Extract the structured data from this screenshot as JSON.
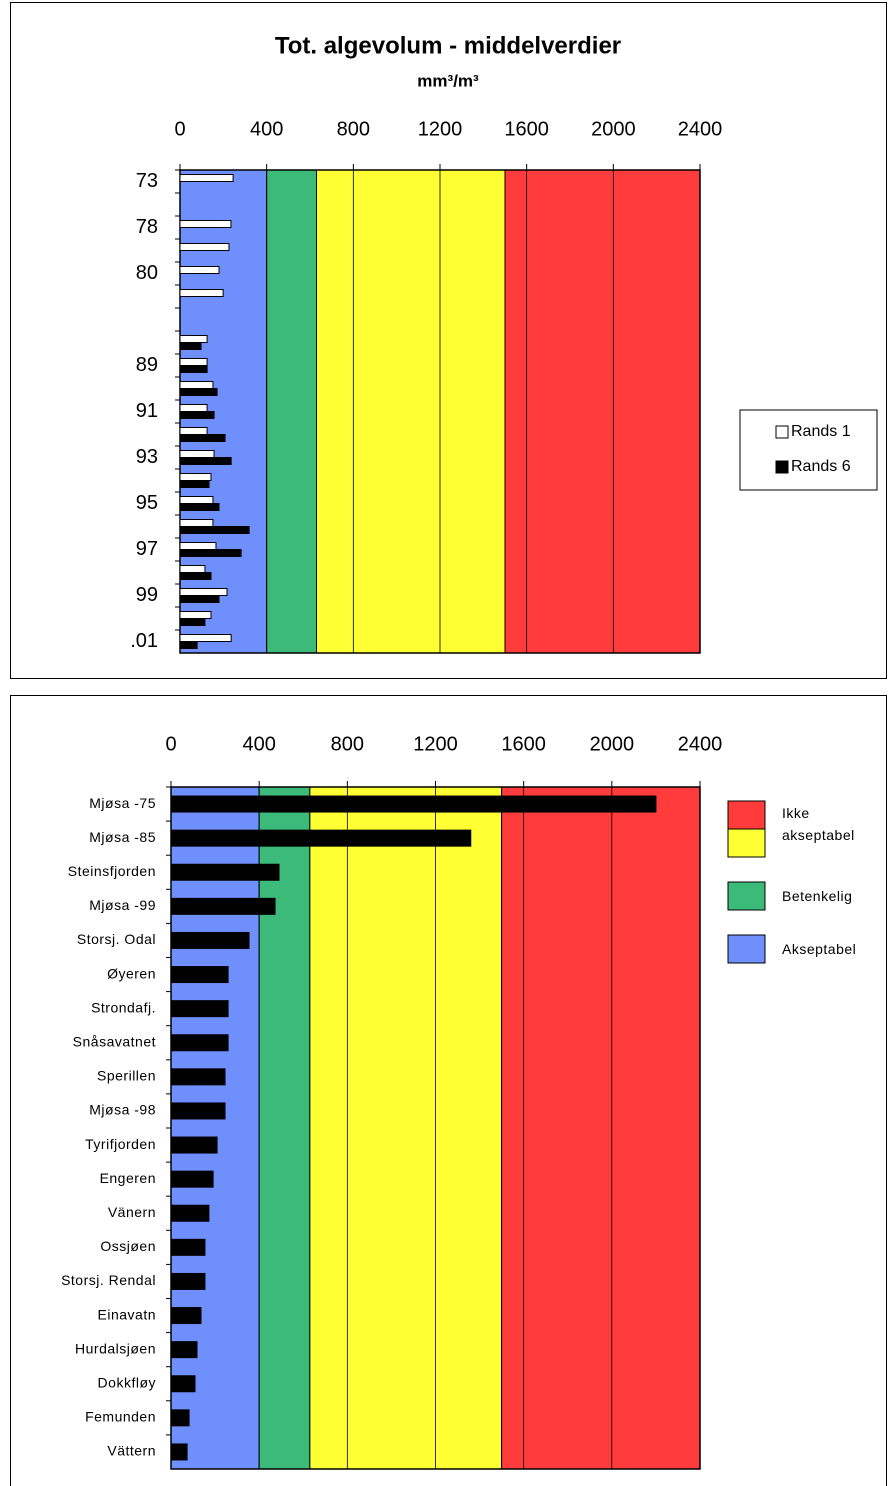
{
  "chart_data": [
    {
      "type": "bar",
      "orientation": "horizontal",
      "title": "Tot. algevolum - middelverdier",
      "subtitle": "mm³/m³",
      "categories": [
        "73",
        null,
        "78",
        null,
        "80",
        null,
        null,
        null,
        "89",
        null,
        "91",
        null,
        "93",
        null,
        "95",
        null,
        "97",
        null,
        "99",
        null,
        ".01"
      ],
      "series": [
        {
          "name": "Rands 1",
          "color": "#ffffff",
          "values": [
            245,
            null,
            235,
            226,
            180,
            199,
            null,
            125,
            125,
            152,
            125,
            125,
            157,
            143,
            152,
            152,
            166,
            115,
            217,
            143,
            236
          ]
        },
        {
          "name": "Rands 6",
          "color": "#000000",
          "values": [
            null,
            null,
            null,
            null,
            null,
            null,
            null,
            97,
            125,
            171,
            157,
            208,
            236,
            134,
            180,
            319,
            282,
            143,
            180,
            115,
            79
          ]
        }
      ],
      "bands": [
        {
          "color": "#6f8ffd",
          "range": [
            0,
            400
          ]
        },
        {
          "color": "#3cba7a",
          "range": [
            400,
            630
          ]
        },
        {
          "color": "#ffff33",
          "range": [
            630,
            1500
          ]
        },
        {
          "color": "#ff3b3b",
          "range": [
            1500,
            2400
          ]
        }
      ],
      "xlim": [
        0,
        2400
      ],
      "xticks": [
        0,
        400,
        800,
        1200,
        1600,
        2000,
        2400
      ],
      "grid": true,
      "legend": "right"
    },
    {
      "type": "bar",
      "orientation": "horizontal",
      "categories": [
        "Mjøsa -75",
        "Mjøsa -85",
        "Steinsfjorden",
        "Mjøsa -99",
        "Storsj. Odal",
        "Øyeren",
        "Strondafj.",
        "Snåsavatnet",
        "Sperillen",
        "Mjøsa -98",
        "Tyrifjorden",
        "Engeren",
        "Vänern",
        "Ossjøen",
        "Storsj. Rendal",
        "Einavatn",
        "Hurdalsjøen",
        "Dokkfløy",
        "Femunden",
        "Vättern"
      ],
      "series": [
        {
          "color": "#000000",
          "values": [
            2200,
            1360,
            490,
            472,
            354,
            259,
            259,
            259,
            245,
            245,
            209,
            191,
            172,
            154,
            154,
            136,
            118,
            109,
            82,
            73
          ]
        }
      ],
      "bands": [
        {
          "color": "#6f8ffd",
          "range": [
            0,
            400
          ]
        },
        {
          "color": "#3cba7a",
          "range": [
            400,
            630
          ]
        },
        {
          "color": "#ffff33",
          "range": [
            630,
            1500
          ]
        },
        {
          "color": "#ff3b3b",
          "range": [
            1500,
            2400
          ]
        }
      ],
      "band_legend": [
        {
          "name": "Ikke akseptabel",
          "colors": [
            "#ff3b3b",
            "#ffff33"
          ]
        },
        {
          "name": "Betenkelig",
          "colors": [
            "#3cba7a"
          ]
        },
        {
          "name": "Akseptabel",
          "colors": [
            "#6f8ffd"
          ]
        }
      ],
      "xlim": [
        0,
        2400
      ],
      "xticks": [
        0,
        400,
        800,
        1200,
        1600,
        2000,
        2400
      ],
      "grid": true,
      "legend": "right"
    }
  ]
}
